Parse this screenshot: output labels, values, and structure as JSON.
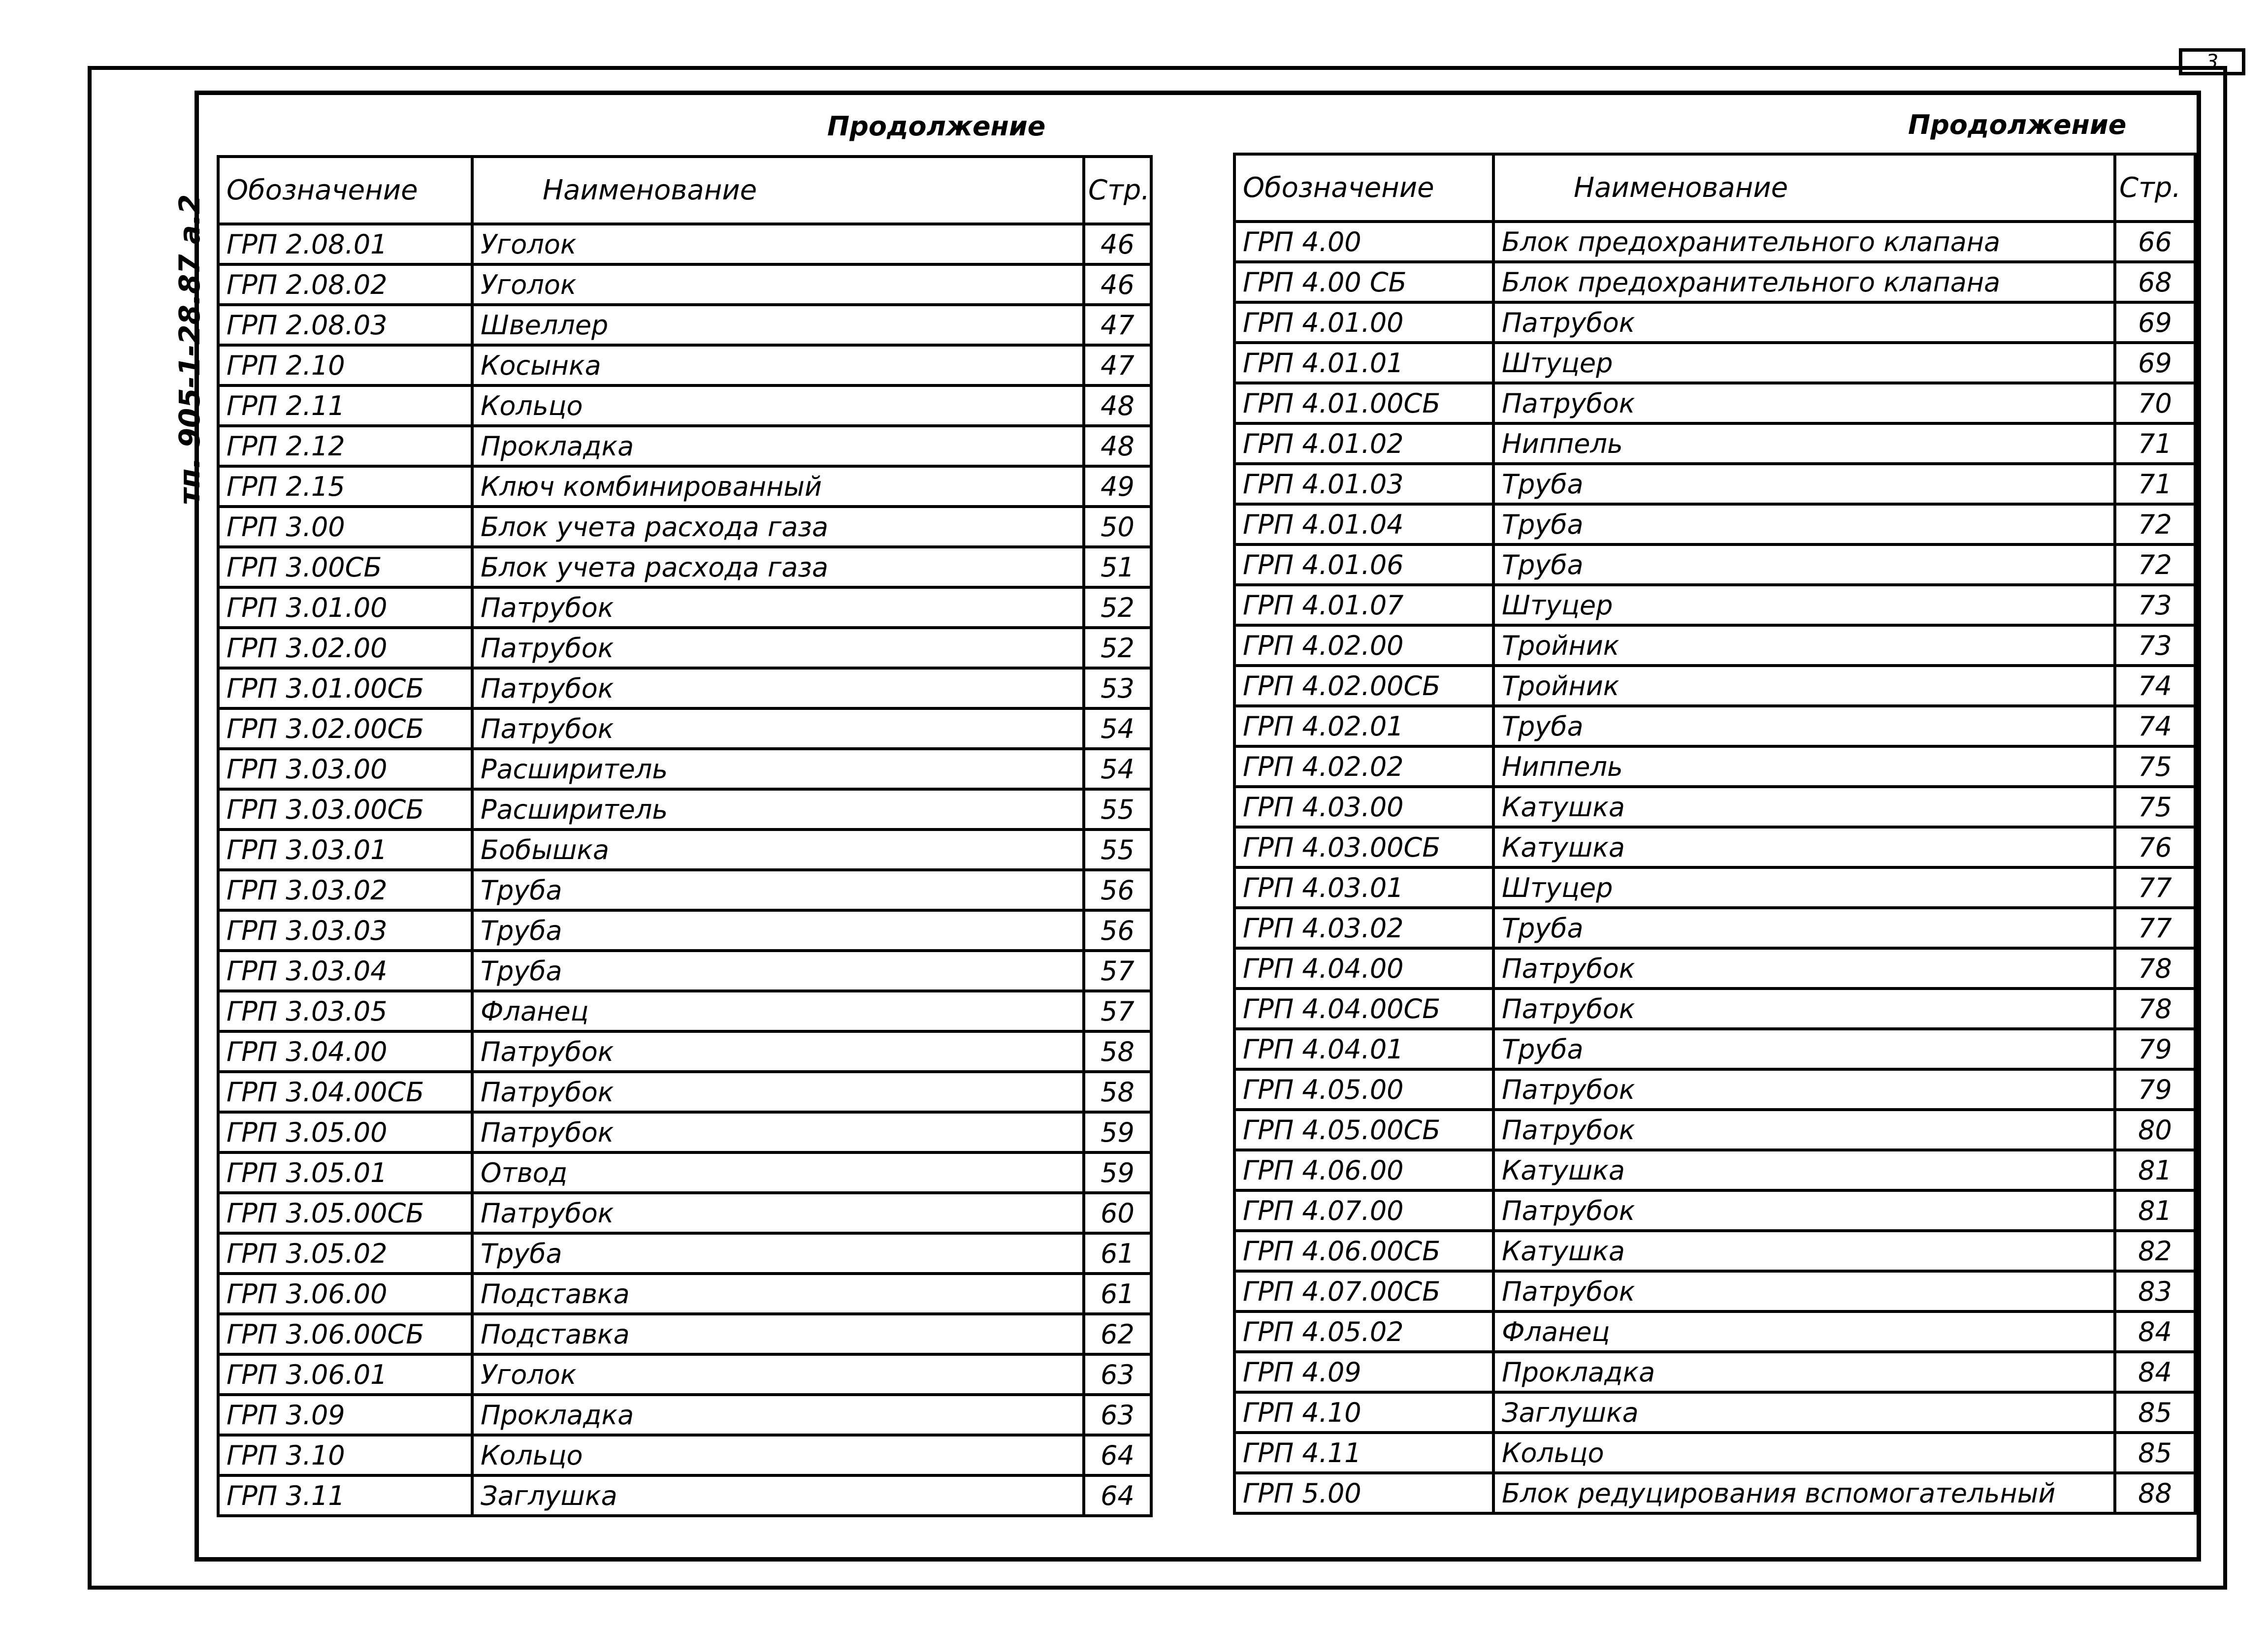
{
  "page_number": "3",
  "side_code": "тп. 905-1-28.87 а.2",
  "left": {
    "continuation": "Продолжение",
    "headers": [
      "Обозначение",
      "Наименование",
      "Стр."
    ],
    "rows": [
      [
        "ГРП 2.08.01",
        "Уголок",
        "46"
      ],
      [
        "ГРП 2.08.02",
        "Уголок",
        "46"
      ],
      [
        "ГРП 2.08.03",
        "Швеллер",
        "47"
      ],
      [
        "ГРП 2.10",
        "Косынка",
        "47"
      ],
      [
        "ГРП 2.11",
        "Кольцо",
        "48"
      ],
      [
        "ГРП 2.12",
        "Прокладка",
        "48"
      ],
      [
        "ГРП 2.15",
        "Ключ комбинированный",
        "49"
      ],
      [
        "ГРП 3.00",
        "Блок учета расхода газа",
        "50"
      ],
      [
        "ГРП 3.00СБ",
        "Блок учета расхода газа",
        "51"
      ],
      [
        "ГРП 3.01.00",
        "Патрубок",
        "52"
      ],
      [
        "ГРП 3.02.00",
        "Патрубок",
        "52"
      ],
      [
        "ГРП 3.01.00СБ",
        "Патрубок",
        "53"
      ],
      [
        "ГРП 3.02.00СБ",
        "Патрубок",
        "54"
      ],
      [
        "ГРП 3.03.00",
        "Расширитель",
        "54"
      ],
      [
        "ГРП 3.03.00СБ",
        "Расширитель",
        "55"
      ],
      [
        "ГРП 3.03.01",
        "Бобышка",
        "55"
      ],
      [
        "ГРП 3.03.02",
        "Труба",
        "56"
      ],
      [
        "ГРП 3.03.03",
        "Труба",
        "56"
      ],
      [
        "ГРП 3.03.04",
        "Труба",
        "57"
      ],
      [
        "ГРП 3.03.05",
        "Фланец",
        "57"
      ],
      [
        "ГРП 3.04.00",
        "Патрубок",
        "58"
      ],
      [
        "ГРП 3.04.00СБ",
        "Патрубок",
        "58"
      ],
      [
        "ГРП 3.05.00",
        "Патрубок",
        "59"
      ],
      [
        "ГРП 3.05.01",
        "Отвод",
        "59"
      ],
      [
        "ГРП 3.05.00СБ",
        "Патрубок",
        "60"
      ],
      [
        "ГРП 3.05.02",
        "Труба",
        "61"
      ],
      [
        "ГРП 3.06.00",
        "Подставка",
        "61"
      ],
      [
        "ГРП 3.06.00СБ",
        "Подставка",
        "62"
      ],
      [
        "ГРП 3.06.01",
        "Уголок",
        "63"
      ],
      [
        "ГРП 3.09",
        "Прокладка",
        "63"
      ],
      [
        "ГРП 3.10",
        "Кольцо",
        "64"
      ],
      [
        "ГРП 3.11",
        "Заглушка",
        "64"
      ]
    ]
  },
  "right": {
    "continuation": "Продолжение",
    "headers": [
      "Обозначение",
      "Наименование",
      "Стр."
    ],
    "rows": [
      [
        "ГРП 4.00",
        "Блок предохранительного клапана",
        "66"
      ],
      [
        "ГРП 4.00 СБ",
        "Блок предохранительного клапана",
        "68"
      ],
      [
        "ГРП 4.01.00",
        "Патрубок",
        "69"
      ],
      [
        "ГРП 4.01.01",
        "Штуцер",
        "69"
      ],
      [
        "ГРП 4.01.00СБ",
        "Патрубок",
        "70"
      ],
      [
        "ГРП 4.01.02",
        "Ниппель",
        "71"
      ],
      [
        "ГРП 4.01.03",
        "Труба",
        "71"
      ],
      [
        "ГРП 4.01.04",
        "Труба",
        "72"
      ],
      [
        "ГРП 4.01.06",
        "Труба",
        "72"
      ],
      [
        "ГРП 4.01.07",
        "Штуцер",
        "73"
      ],
      [
        "ГРП 4.02.00",
        "Тройник",
        "73"
      ],
      [
        "ГРП 4.02.00СБ",
        "Тройник",
        "74"
      ],
      [
        "ГРП 4.02.01",
        "Труба",
        "74"
      ],
      [
        "ГРП 4.02.02",
        "Ниппель",
        "75"
      ],
      [
        "ГРП 4.03.00",
        "Катушка",
        "75"
      ],
      [
        "ГРП 4.03.00СБ",
        "Катушка",
        "76"
      ],
      [
        "ГРП 4.03.01",
        "Штуцер",
        "77"
      ],
      [
        "ГРП 4.03.02",
        "Труба",
        "77"
      ],
      [
        "ГРП 4.04.00",
        "Патрубок",
        "78"
      ],
      [
        "ГРП 4.04.00СБ",
        "Патрубок",
        "78"
      ],
      [
        "ГРП 4.04.01",
        "Труба",
        "79"
      ],
      [
        "ГРП 4.05.00",
        "Патрубок",
        "79"
      ],
      [
        "ГРП 4.05.00СБ",
        "Патрубок",
        "80"
      ],
      [
        "ГРП 4.06.00",
        "Катушка",
        "81"
      ],
      [
        "ГРП 4.07.00",
        "Патрубок",
        "81"
      ],
      [
        "ГРП 4.06.00СБ",
        "Катушка",
        "82"
      ],
      [
        "ГРП 4.07.00СБ",
        "Патрубок",
        "83"
      ],
      [
        "ГРП 4.05.02",
        "Фланец",
        "84"
      ],
      [
        "ГРП 4.09",
        "Прокладка",
        "84"
      ],
      [
        "ГРП 4.10",
        "Заглушка",
        "85"
      ],
      [
        "ГРП 4.11",
        "Кольцо",
        "85"
      ],
      [
        "ГРП 5.00",
        "Блок редуцирования вспомогательный",
        "88"
      ]
    ]
  }
}
